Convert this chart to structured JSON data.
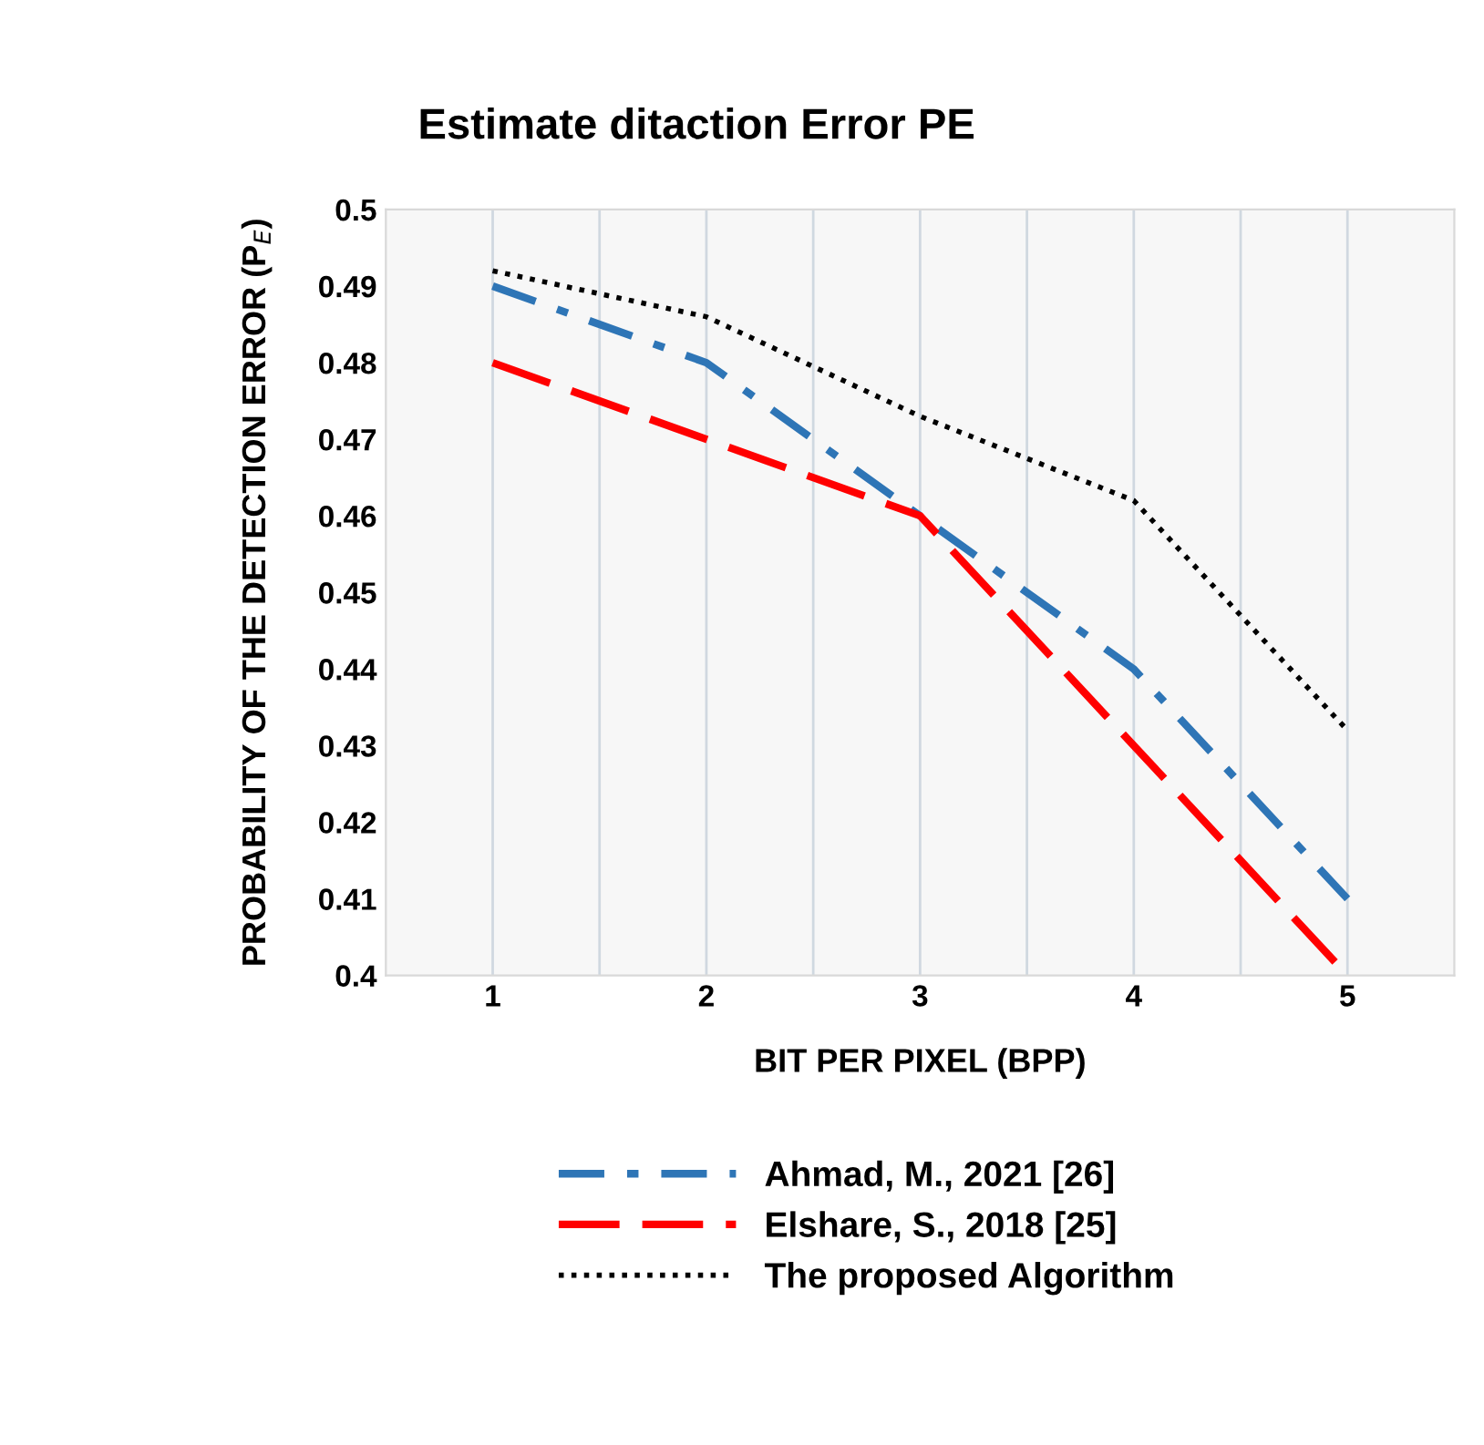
{
  "chart_data": {
    "type": "line",
    "title": "Estimate ditaction Error PE",
    "xlabel": "BIT PER PIXEL (BPP)",
    "ylabel": "PROBABILITY OF THE DETECTION ERROR (P$_{E}$)",
    "x": [
      1,
      2,
      3,
      4,
      5
    ],
    "xlim": [
      0.5,
      5.5
    ],
    "xticks": [
      1,
      {
        "value": 1.5,
        "label": null
      },
      2,
      {
        "value": 2.5,
        "label": null
      },
      3,
      {
        "value": 3.5,
        "label": null
      },
      4,
      {
        "value": 4.5,
        "label": null
      },
      5
    ],
    "ylim": [
      0.4,
      0.5
    ],
    "yticks": [
      0.4,
      0.41,
      0.42,
      0.43,
      0.44,
      0.45,
      0.46,
      0.47,
      0.48,
      0.49,
      0.5
    ],
    "grid": "x",
    "legend": "bottom",
    "marker": "none",
    "series": [
      {
        "name": "Ahmad, M., 2021 [26]",
        "color": "#2e75b6",
        "line_style": "dashdot",
        "values": [
          0.49,
          0.48,
          0.46,
          0.44,
          0.41
        ]
      },
      {
        "name": "Elshare, S., 2018 [25]",
        "color": "#ff0000",
        "line_style": "dashed",
        "values": [
          0.48,
          0.47,
          0.46,
          0.43,
          0.4
        ]
      },
      {
        "name": "The proposed Algorithm",
        "color": "#000000",
        "line_style": "dotted",
        "values": [
          0.492,
          0.486,
          0.473,
          0.462,
          0.432
        ]
      }
    ]
  }
}
